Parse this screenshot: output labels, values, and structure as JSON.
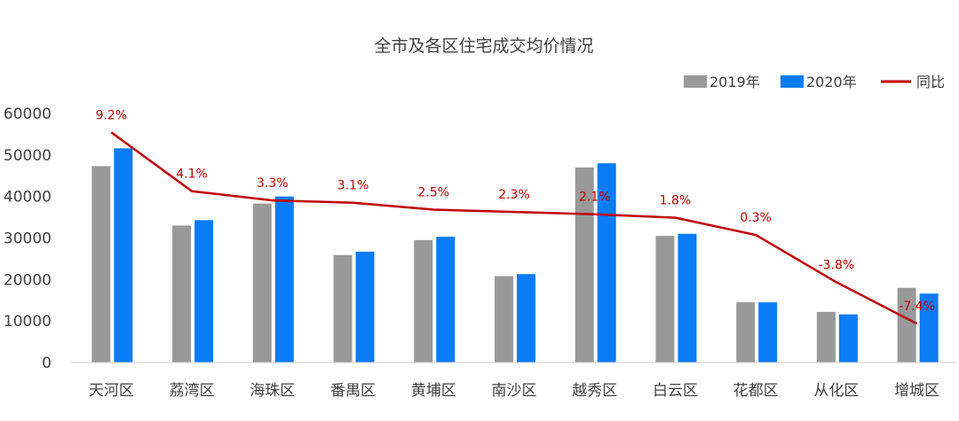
{
  "chart_data": {
    "type": "bar",
    "title": "全市及各区住宅成交均价情况",
    "categories": [
      "天河区",
      "荔湾区",
      "海珠区",
      "番禺区",
      "黄埔区",
      "南沙区",
      "越秀区",
      "白云区",
      "花都区",
      "从化区",
      "增城区"
    ],
    "series": [
      {
        "name": "2019年",
        "type": "bar",
        "color": "#999999",
        "values": [
          47300,
          33000,
          38300,
          25900,
          29500,
          20800,
          47000,
          30500,
          14500,
          12200,
          18000
        ]
      },
      {
        "name": "2020年",
        "type": "bar",
        "color": "#0a7cf5",
        "values": [
          51600,
          34300,
          40000,
          26700,
          30300,
          21300,
          48000,
          31000,
          14500,
          11600,
          16600
        ]
      },
      {
        "name": "同比",
        "type": "line",
        "color": "#c00000",
        "values": [
          9.2,
          4.1,
          3.3,
          3.1,
          2.5,
          2.3,
          2.1,
          1.8,
          0.3,
          -3.8,
          -7.4
        ],
        "labels": [
          "9.2%",
          "4.1%",
          "3.3%",
          "3.1%",
          "2.5%",
          "2.3%",
          "2.1%",
          "1.8%",
          "0.3%",
          "-3.8%",
          "-7.4%"
        ]
      }
    ],
    "ylim": [
      0,
      60000
    ],
    "yticks": [
      0,
      10000,
      20000,
      30000,
      40000,
      50000,
      60000
    ],
    "ytick_labels": [
      "0",
      "10000",
      "20000",
      "30000",
      "40000",
      "50000",
      "60000"
    ],
    "secondary_ylim": [
      -8,
      10
    ],
    "grid": false,
    "legend_position": "top-right"
  }
}
